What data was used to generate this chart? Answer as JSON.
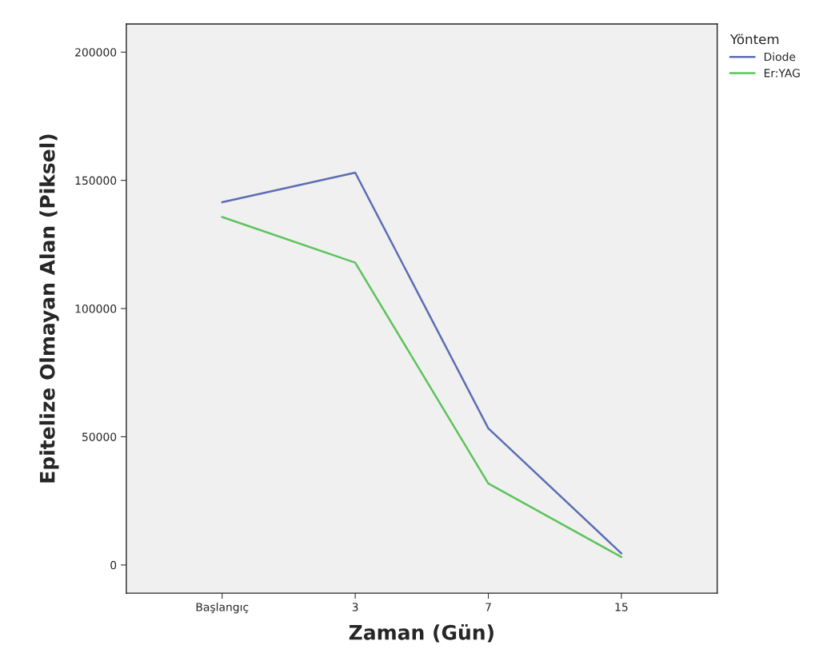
{
  "chart_data": {
    "type": "line",
    "xlabel": "Zaman (Gün)",
    "ylabel": "Epitelize Olmayan Alan (Piksel)",
    "legend_title": "Yöntem",
    "categories": [
      "Başlangıç",
      "3",
      "7",
      "15"
    ],
    "series": [
      {
        "name": "Diode",
        "color": "#5b6eb4",
        "values": [
          141500,
          153000,
          53300,
          4500
        ]
      },
      {
        "name": "Er:YAG",
        "color": "#5cc45c",
        "values": [
          135700,
          117900,
          31800,
          3100
        ]
      }
    ],
    "ylim": [
      -11000,
      211000
    ],
    "yticks": [
      0,
      50000,
      100000,
      150000,
      200000
    ],
    "grid": false,
    "legend": "top right",
    "marker": "none",
    "line_style": "solid"
  }
}
